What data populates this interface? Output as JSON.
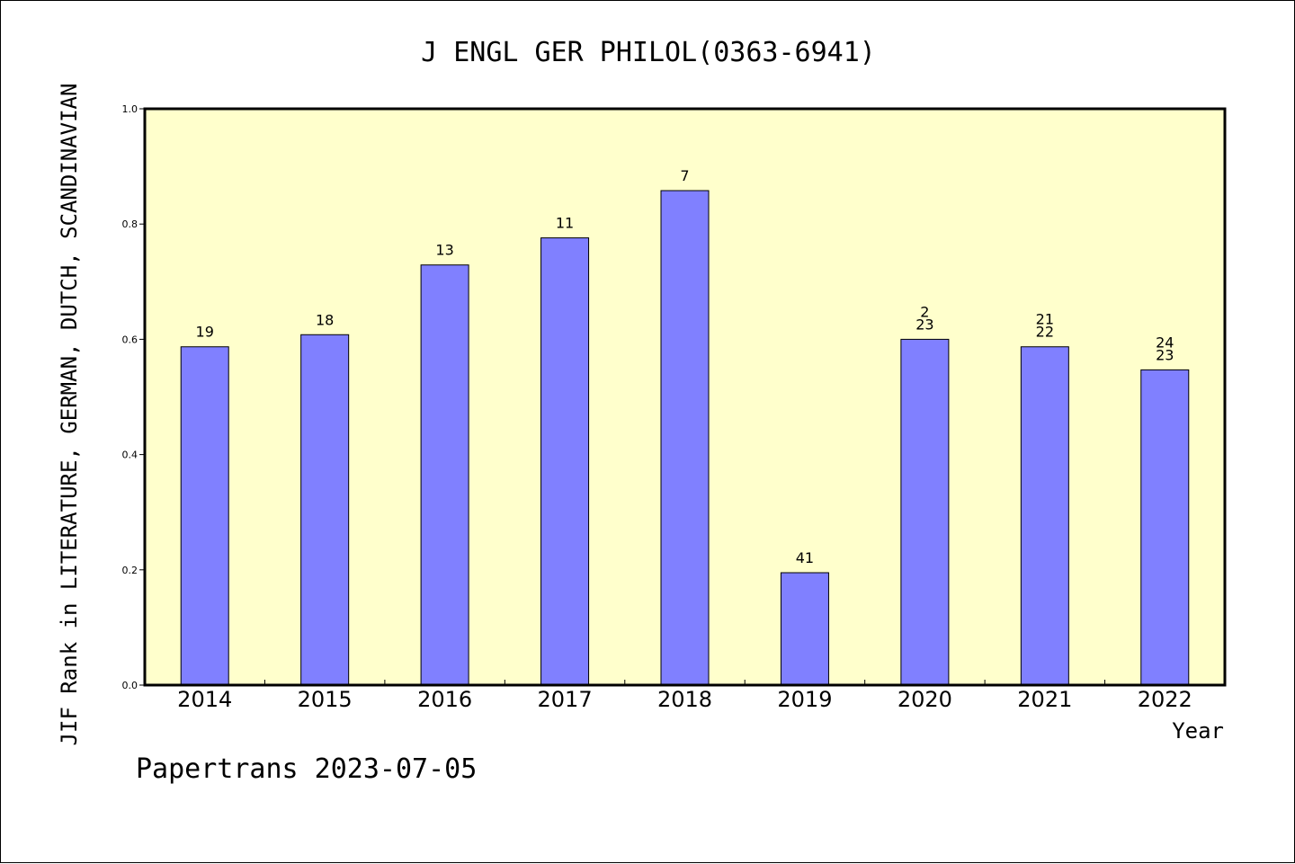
{
  "chart_data": {
    "type": "bar",
    "title": "J ENGL GER PHILOL(0363-6941)",
    "xlabel": "Year",
    "ylabel": "JIF Rank in LITERATURE, GERMAN, DUTCH, SCANDINAVIAN",
    "ylim": [
      0.0,
      1.0
    ],
    "yticks": [
      "0.0",
      "0.2",
      "0.4",
      "0.6",
      "0.8",
      "1.0"
    ],
    "categories": [
      "2014",
      "2015",
      "2016",
      "2017",
      "2018",
      "2019",
      "2020",
      "2021",
      "2022"
    ],
    "values": [
      0.587,
      0.608,
      0.729,
      0.776,
      0.858,
      0.195,
      0.6,
      0.587,
      0.547
    ],
    "rank_labels": [
      [
        "19"
      ],
      [
        "18"
      ],
      [
        "13"
      ],
      [
        "11"
      ],
      [
        "7"
      ],
      [
        "41"
      ],
      [
        "2",
        "23"
      ],
      [
        "21",
        "22"
      ],
      [
        "24",
        "23"
      ]
    ],
    "grid": false,
    "colors": {
      "bar": "#8080ff",
      "plot_background": "#ffffcc",
      "axis": "#000000"
    }
  },
  "footer": {
    "credit": "Papertrans 2023-07-05"
  }
}
